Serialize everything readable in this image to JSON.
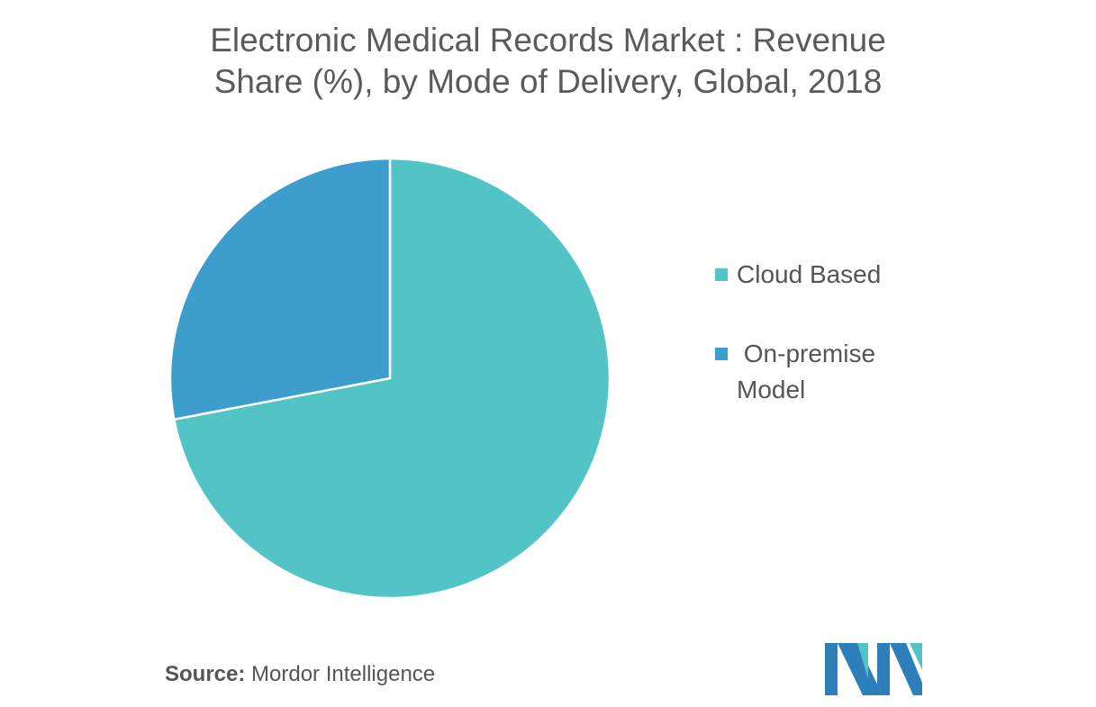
{
  "chart_data": {
    "type": "pie",
    "title_lines": [
      "Electronic Medical Records Market : Revenue",
      "Share (%), by  Mode of Delivery, Global, 2018"
    ],
    "categories": [
      "Cloud Based",
      "On-premise Model"
    ],
    "legend_labels": [
      "Cloud Based",
      " On-premise Model"
    ],
    "values": [
      72,
      28
    ],
    "unit": "%",
    "colors": [
      "#52c4c6",
      "#3d9ece"
    ],
    "start_angle": "12 o'clock, clockwise",
    "legend_position": "right"
  },
  "source": {
    "label": "Source:",
    "text": " Mordor Intelligence"
  },
  "logo": {
    "icon": "mordor-intelligence-logo",
    "colors": [
      "#2c7fb8",
      "#52c4c6"
    ]
  }
}
